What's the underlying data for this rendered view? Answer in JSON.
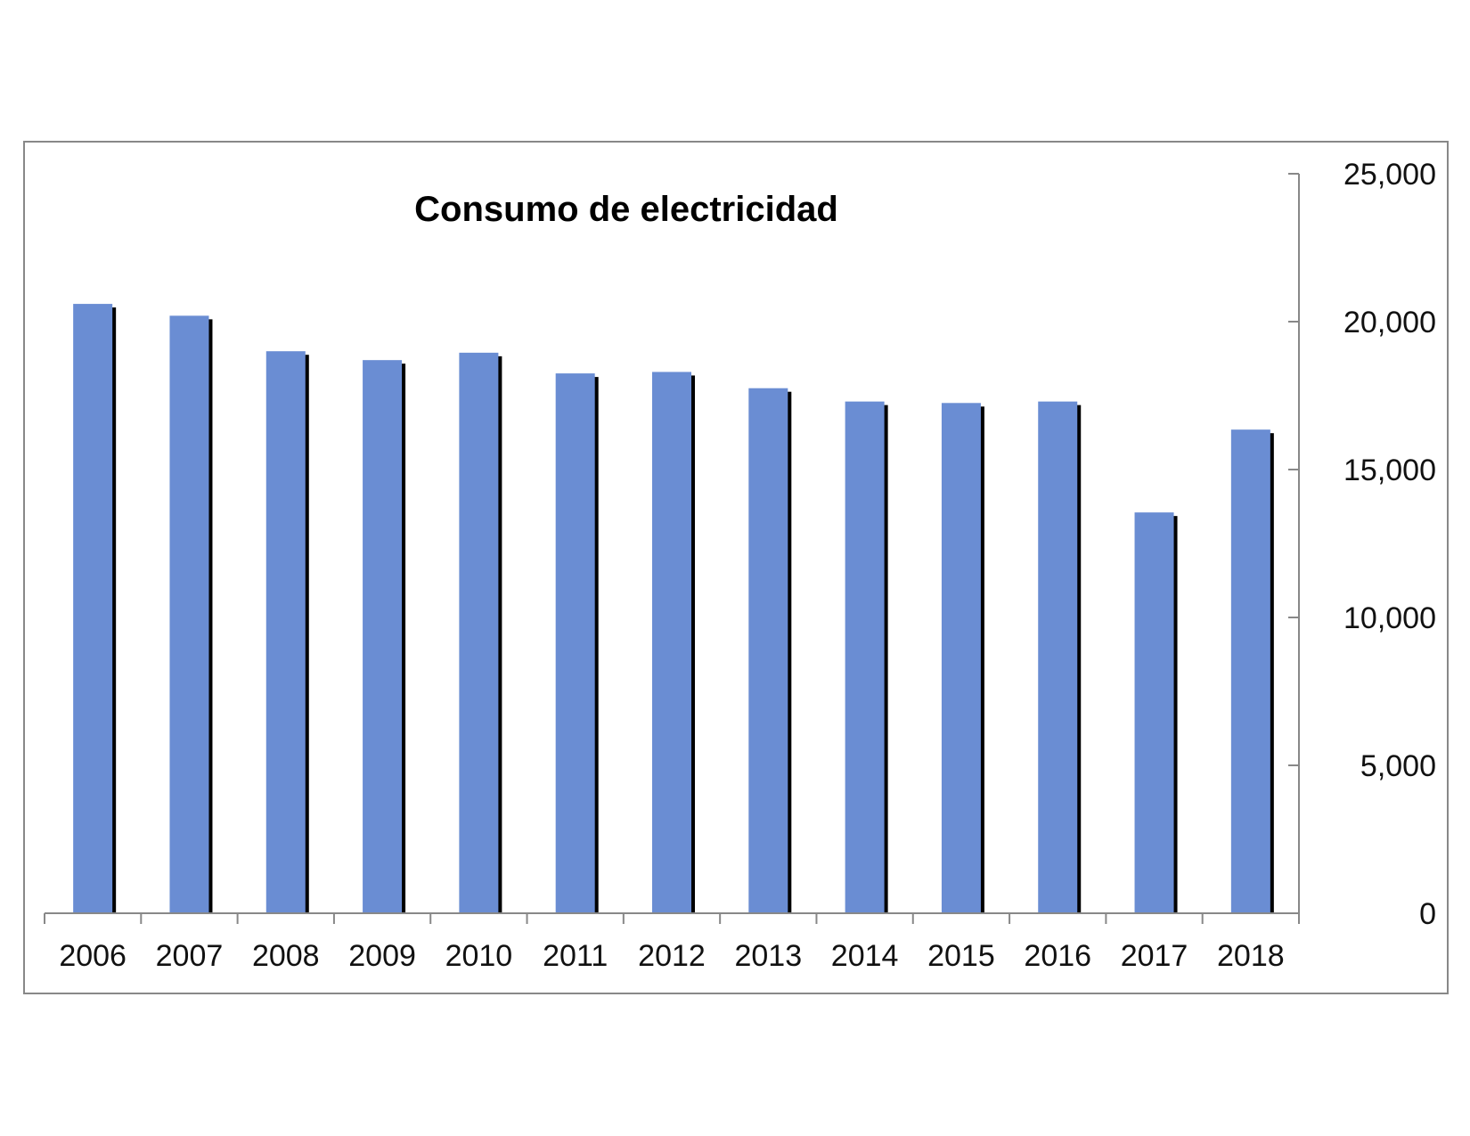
{
  "chart_data": {
    "type": "bar",
    "title": "Consumo de electricidad",
    "categories": [
      "2006",
      "2007",
      "2008",
      "2009",
      "2010",
      "2011",
      "2012",
      "2013",
      "2014",
      "2015",
      "2016",
      "2017",
      "2018"
    ],
    "series": [
      {
        "values": [
          20600,
          20200,
          19000,
          18700,
          18950,
          18250,
          18300,
          17750,
          17300,
          17250,
          17300,
          13550,
          16350
        ]
      }
    ],
    "ylim": [
      0,
      25000
    ],
    "yticks": [
      "0",
      "5,000",
      "10,000",
      "15,000",
      "20,000",
      "25,000"
    ],
    "ytick_values": [
      0,
      5000,
      10000,
      15000,
      20000,
      25000
    ],
    "y_axis_side": "right",
    "grid": false,
    "legend": "none",
    "bar_color": "#6a8dd3",
    "shadow_color": "#000000",
    "axis_color": "#888888",
    "frame_color": "#888888"
  }
}
